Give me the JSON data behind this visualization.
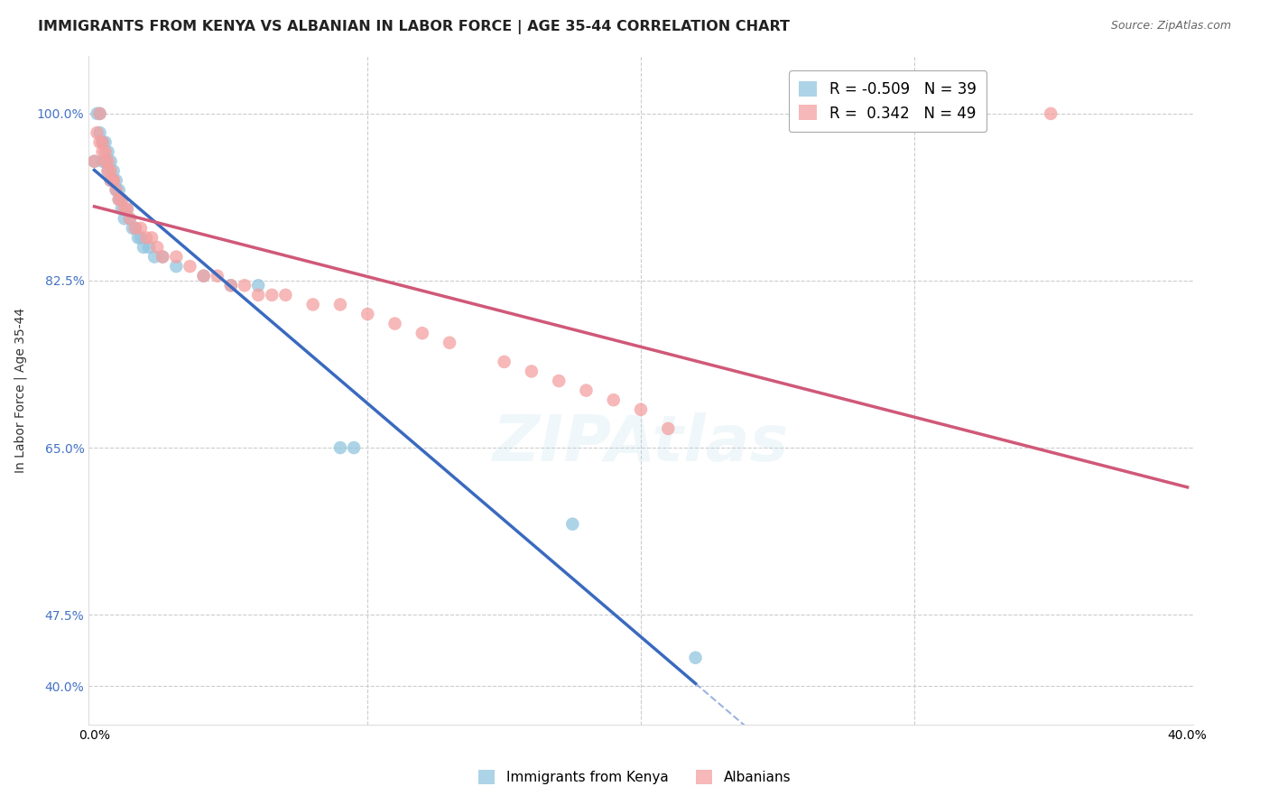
{
  "title": "IMMIGRANTS FROM KENYA VS ALBANIAN IN LABOR FORCE | AGE 35-44 CORRELATION CHART",
  "source": "Source: ZipAtlas.com",
  "ylabel": "In Labor Force | Age 35-44",
  "xlim": [
    -0.002,
    0.402
  ],
  "ylim": [
    0.36,
    1.06
  ],
  "ytick_vals": [
    0.4,
    0.475,
    0.65,
    0.825,
    1.0
  ],
  "ytick_labels": [
    "40.0%",
    "47.5%",
    "65.0%",
    "82.5%",
    "100.0%"
  ],
  "xtick_vals": [
    0.0,
    0.1,
    0.2,
    0.3,
    0.4
  ],
  "xtick_labels": [
    "0.0%",
    "",
    "",
    "",
    "40.0%"
  ],
  "kenya_x": [
    0.0,
    0.001,
    0.002,
    0.002,
    0.003,
    0.003,
    0.004,
    0.004,
    0.005,
    0.005,
    0.006,
    0.006,
    0.007,
    0.007,
    0.008,
    0.008,
    0.009,
    0.009,
    0.01,
    0.01,
    0.011,
    0.012,
    0.013,
    0.014,
    0.015,
    0.016,
    0.017,
    0.018,
    0.02,
    0.022,
    0.025,
    0.03,
    0.04,
    0.05,
    0.06,
    0.09,
    0.095,
    0.175,
    0.22
  ],
  "kenya_y": [
    0.95,
    1.0,
    1.0,
    0.98,
    0.97,
    0.95,
    0.97,
    0.95,
    0.96,
    0.94,
    0.95,
    0.93,
    0.94,
    0.93,
    0.92,
    0.93,
    0.92,
    0.91,
    0.91,
    0.9,
    0.89,
    0.9,
    0.89,
    0.88,
    0.88,
    0.87,
    0.87,
    0.86,
    0.86,
    0.85,
    0.85,
    0.84,
    0.83,
    0.82,
    0.82,
    0.65,
    0.65,
    0.57,
    0.43
  ],
  "albanian_x": [
    0.0,
    0.001,
    0.002,
    0.002,
    0.003,
    0.003,
    0.004,
    0.004,
    0.005,
    0.005,
    0.006,
    0.006,
    0.007,
    0.007,
    0.008,
    0.009,
    0.01,
    0.011,
    0.012,
    0.013,
    0.015,
    0.017,
    0.019,
    0.021,
    0.023,
    0.025,
    0.03,
    0.035,
    0.04,
    0.045,
    0.05,
    0.055,
    0.06,
    0.065,
    0.07,
    0.08,
    0.09,
    0.1,
    0.11,
    0.12,
    0.13,
    0.15,
    0.16,
    0.17,
    0.18,
    0.19,
    0.2,
    0.21,
    0.35
  ],
  "albanian_y": [
    0.95,
    0.98,
    1.0,
    0.97,
    0.97,
    0.96,
    0.96,
    0.95,
    0.95,
    0.94,
    0.94,
    0.93,
    0.93,
    0.93,
    0.92,
    0.91,
    0.91,
    0.9,
    0.9,
    0.89,
    0.88,
    0.88,
    0.87,
    0.87,
    0.86,
    0.85,
    0.85,
    0.84,
    0.83,
    0.83,
    0.82,
    0.82,
    0.81,
    0.81,
    0.81,
    0.8,
    0.8,
    0.79,
    0.78,
    0.77,
    0.76,
    0.74,
    0.73,
    0.72,
    0.71,
    0.7,
    0.69,
    0.67,
    1.0
  ],
  "kenya_color": "#92c5de",
  "albanian_color": "#f4a0a0",
  "kenya_line_color": "#3a6abf",
  "albanian_line_color": "#d05878",
  "background_color": "#ffffff",
  "grid_color": "#cccccc",
  "title_fontsize": 11.5,
  "label_fontsize": 10,
  "tick_fontsize": 10,
  "source_fontsize": 9,
  "watermark": "ZIPAtlas"
}
